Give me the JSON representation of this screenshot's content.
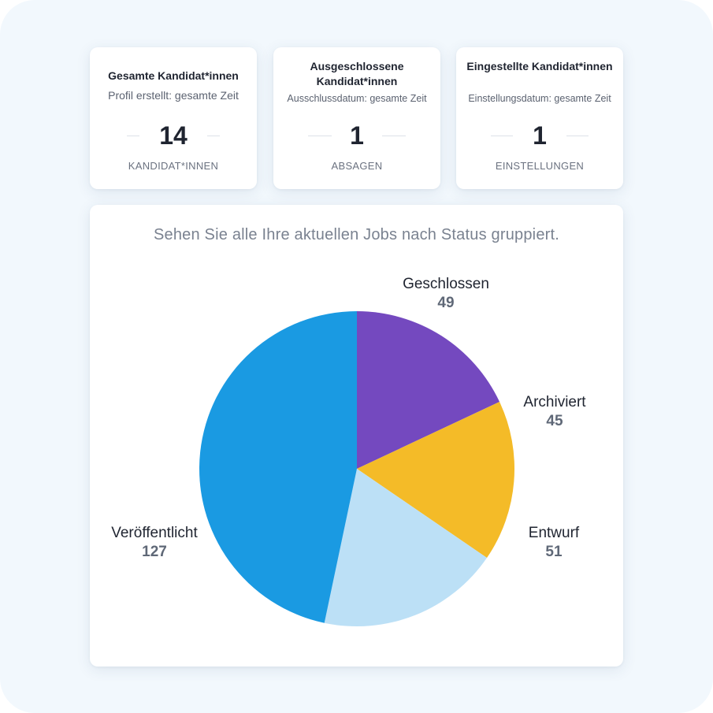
{
  "stats": [
    {
      "title": "Gesamte Kandidat*innen",
      "subtitle": "Profil erstellt: gesamte Zeit",
      "value": "14",
      "unit": "KANDIDAT*INNEN"
    },
    {
      "title": "Ausgeschlossene Kandidat*innen",
      "subtitle": "Ausschlussdatum: gesamte Zeit",
      "value": "1",
      "unit": "ABSAGEN"
    },
    {
      "title": "Eingestellte Kandidat*innen",
      "subtitle": "Einstellungsdatum: gesamte Zeit",
      "value": "1",
      "unit": "EINSTELLUNGEN"
    }
  ],
  "chart_data": {
    "type": "pie",
    "title": "Sehen Sie alle Ihre aktuellen Jobs nach Status gruppiert.",
    "categories": [
      "Geschlossen",
      "Archiviert",
      "Entwurf",
      "Veröffentlicht"
    ],
    "values": [
      49,
      45,
      51,
      127
    ],
    "colors": [
      "#7449bf",
      "#f4bb28",
      "#bce0f6",
      "#1a9ae2"
    ],
    "start_angle_deg": 0,
    "direction": "clockwise"
  }
}
